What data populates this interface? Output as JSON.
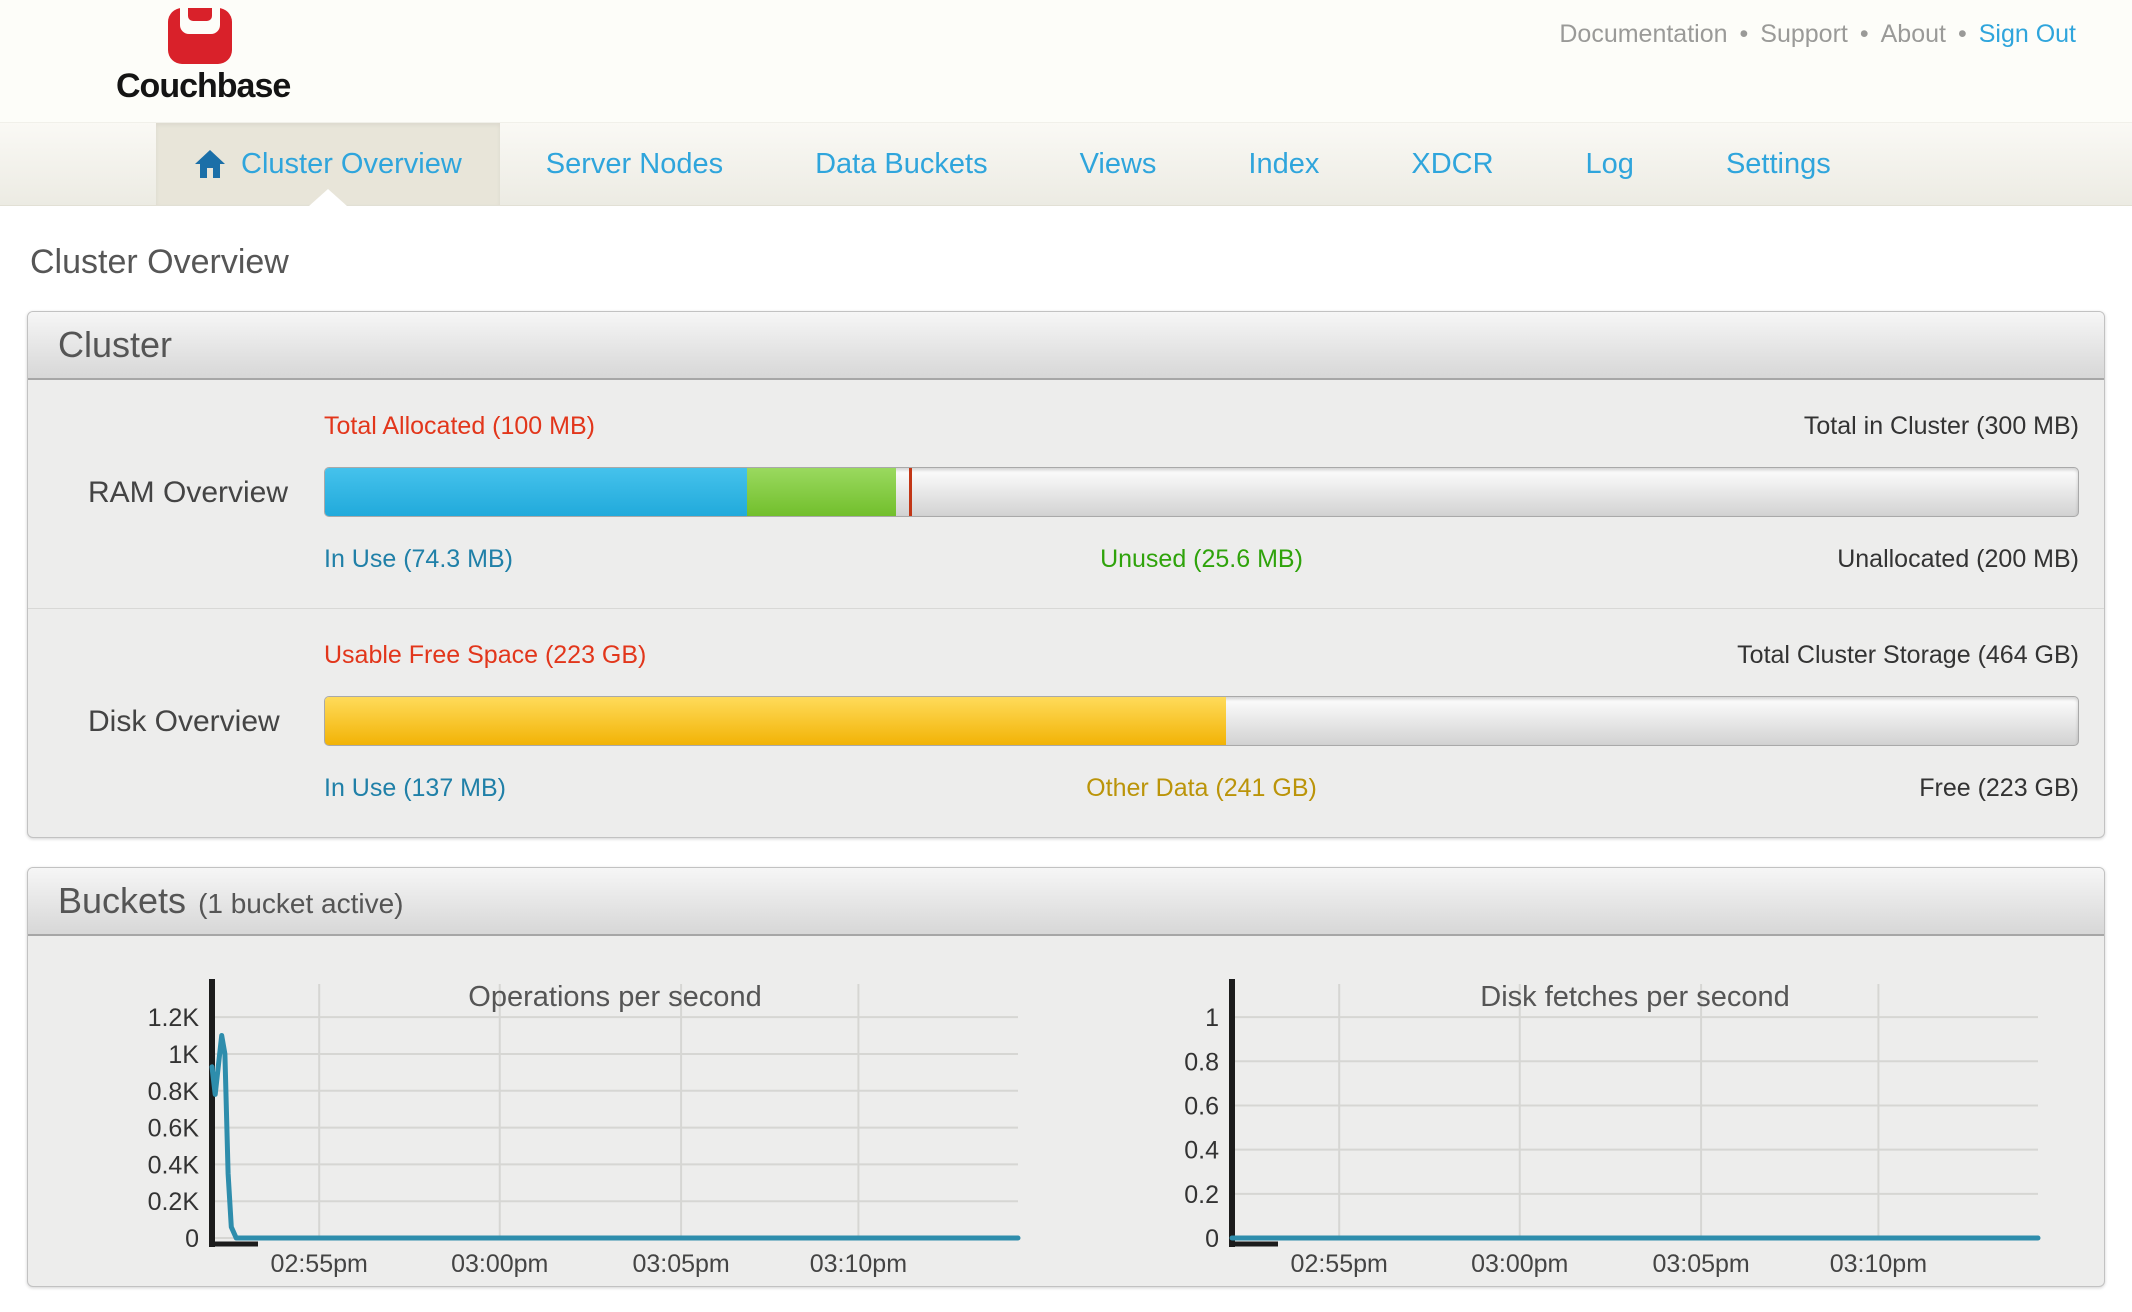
{
  "header": {
    "logo_text": "Couchbase",
    "separator": "•",
    "links": [
      {
        "label": "Documentation"
      },
      {
        "label": "Support"
      },
      {
        "label": "About"
      },
      {
        "label": "Sign Out",
        "highlight": true
      }
    ]
  },
  "nav": {
    "items": [
      {
        "label": "Cluster Overview",
        "active": true
      },
      {
        "label": "Server Nodes"
      },
      {
        "label": "Data Buckets"
      },
      {
        "label": "Views"
      },
      {
        "label": "Index"
      },
      {
        "label": "XDCR"
      },
      {
        "label": "Log"
      },
      {
        "label": "Settings"
      }
    ]
  },
  "page": {
    "title": "Cluster Overview"
  },
  "cluster_panel": {
    "title": "Cluster",
    "rows": [
      {
        "name": "RAM Overview",
        "top_left": "Total Allocated (100 MB)",
        "top_right": "Total in Cluster (300 MB)",
        "bottom_left": "In Use (74.3 MB)",
        "bottom_center": "Unused (25.6 MB)",
        "bottom_right": "Unallocated (200 MB)",
        "segments": [
          {
            "name": "in-use",
            "width_pct": 24.1,
            "gradient": [
              "#45c2ec",
              "#21aadb"
            ]
          },
          {
            "name": "unused",
            "width_pct": 8.5,
            "gradient": [
              "#9ad95f",
              "#72bf2c"
            ]
          }
        ],
        "marker_pct": 33.33
      },
      {
        "name": "Disk Overview",
        "top_left": "Usable Free Space (223 GB)",
        "top_right": "Total Cluster Storage (464 GB)",
        "bottom_left": "In Use (137 MB)",
        "bottom_center": "Other Data (241 GB)",
        "bottom_right": "Free (223 GB)",
        "segments": [
          {
            "name": "in-use-plus-other",
            "width_pct": 51.4,
            "gradient": [
              "#ffdb5a",
              "#f2b306"
            ]
          }
        ],
        "marker_pct": null
      }
    ]
  },
  "buckets_panel": {
    "title": "Buckets",
    "subtitle": "(1 bucket active)"
  },
  "chart_data": [
    {
      "type": "line",
      "title": "Operations per second",
      "xlabel": "",
      "ylabel": "",
      "ymax": 1380,
      "ylim": [
        0,
        1380
      ],
      "grid": true,
      "yticks": [
        {
          "value": 0,
          "label": "0"
        },
        {
          "value": 200,
          "label": "0.2K"
        },
        {
          "value": 400,
          "label": "0.4K"
        },
        {
          "value": 600,
          "label": "0.6K"
        },
        {
          "value": 800,
          "label": "0.8K"
        },
        {
          "value": 1000,
          "label": "1K"
        },
        {
          "value": 1200,
          "label": "1.2K"
        }
      ],
      "xticks": [
        {
          "pos": 0.133,
          "label": "02:55pm"
        },
        {
          "pos": 0.357,
          "label": "03:00pm"
        },
        {
          "pos": 0.582,
          "label": "03:05pm"
        },
        {
          "pos": 0.802,
          "label": "03:10pm"
        }
      ],
      "points": [
        [
          0.0,
          930
        ],
        [
          0.004,
          780
        ],
        [
          0.012,
          1100
        ],
        [
          0.016,
          1000
        ],
        [
          0.02,
          350
        ],
        [
          0.024,
          60
        ],
        [
          0.03,
          0
        ],
        [
          1.0,
          0
        ]
      ],
      "annotation": "brief spike to ~1.1K ops before 02:55pm, then flat at 0"
    },
    {
      "type": "line",
      "title": "Disk fetches per second",
      "xlabel": "",
      "ylabel": "",
      "ymax": 1.15,
      "ylim": [
        0,
        1.15
      ],
      "grid": true,
      "yticks": [
        {
          "value": 0,
          "label": "0"
        },
        {
          "value": 0.2,
          "label": "0.2"
        },
        {
          "value": 0.4,
          "label": "0.4"
        },
        {
          "value": 0.6,
          "label": "0.6"
        },
        {
          "value": 0.8,
          "label": "0.8"
        },
        {
          "value": 1,
          "label": "1"
        }
      ],
      "xticks": [
        {
          "pos": 0.133,
          "label": "02:55pm"
        },
        {
          "pos": 0.357,
          "label": "03:00pm"
        },
        {
          "pos": 0.582,
          "label": "03:05pm"
        },
        {
          "pos": 0.802,
          "label": "03:10pm"
        }
      ],
      "points": [
        [
          0.0,
          0
        ],
        [
          1.0,
          0
        ]
      ],
      "annotation": "flat at 0 for entire window"
    }
  ],
  "colors": {
    "logo_red": "#d9212a",
    "nav_blue": "#2fa5dc",
    "nav_home_blue": "#1b6fa8",
    "link_gray": "#9a9a98",
    "signout_blue": "#2fa5dc",
    "title_gray": "#565656",
    "label_red": "#e2361b",
    "label_blue": "#2080a8",
    "label_green": "#2fa30b",
    "label_amber": "#bb9409",
    "label_dark": "#333333",
    "bar_blue": "#29b6e8",
    "bar_green": "#7fc93f",
    "bar_yellow": "#fdc319",
    "bar_marker_red": "#c23616",
    "chart_line": "#2e8dac",
    "chart_grid": "#d6d6d3",
    "chart_axis": "#1c1c1c"
  }
}
